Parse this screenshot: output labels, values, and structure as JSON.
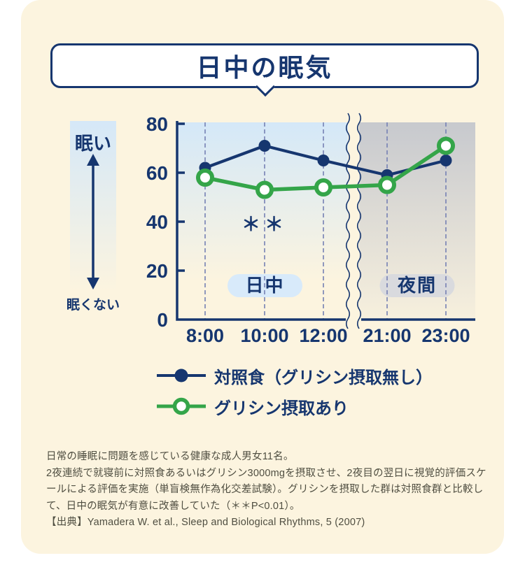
{
  "title": "日中の眠気",
  "chart_data": {
    "type": "line",
    "x": [
      "8:00",
      "10:00",
      "12:00",
      "21:00",
      "23:00"
    ],
    "series": [
      {
        "name": "対照食（グリシン摂取無し）",
        "marker": "filled-circle",
        "color": "#16366F",
        "values": [
          62,
          71,
          65,
          59,
          65
        ]
      },
      {
        "name": "グリシン摂取あり",
        "marker": "open-circle",
        "color": "#34A549",
        "values": [
          58,
          53,
          54,
          55,
          71
        ]
      }
    ],
    "ylim": [
      0,
      80
    ],
    "yticks": [
      0,
      20,
      40,
      60,
      80
    ],
    "ylabel_top": "眠い",
    "ylabel_bottom": "眠くない",
    "grid": "vertical-dashed",
    "legend_position": "bottom",
    "axis_break_after": "12:00",
    "sections": [
      {
        "label": "日中",
        "covers": [
          "8:00",
          "12:00"
        ],
        "pill_color": "#D8EAFA",
        "bg_top_color": "#D4E8F8"
      },
      {
        "label": "夜間",
        "covers": [
          "21:00",
          "23:00"
        ],
        "pill_color": "#D9DADE",
        "bg_top_color": "#C7C9CE"
      }
    ],
    "annotation": {
      "text": "＊＊",
      "at_x": "10:00"
    }
  },
  "notes": {
    "line1": "日常の睡眠に問題を感じている健康な成人男女11名。",
    "body": "2夜連続で就寝前に対照食あるいはグリシン3000mgを摂取させ、2夜目の翌日に視覚的評価スケールによる評価を実施（単盲検無作為化交差試験）。グリシンを摂取した群は対照食群と比較して、日中の眠気が有意に改善していた（＊＊P<0.01）。",
    "source": "【出典】Yamadera W. et al., Sleep and Biological Rhythms, 5 (2007)"
  },
  "colors": {
    "navy": "#16366F",
    "green": "#34A549",
    "panel_cream": "#FCF4DF",
    "grid_dash": "#7681B4",
    "note_text": "#4F4E41",
    "day_pill": "#D8EAFA",
    "night_pill": "#D9DADE"
  }
}
